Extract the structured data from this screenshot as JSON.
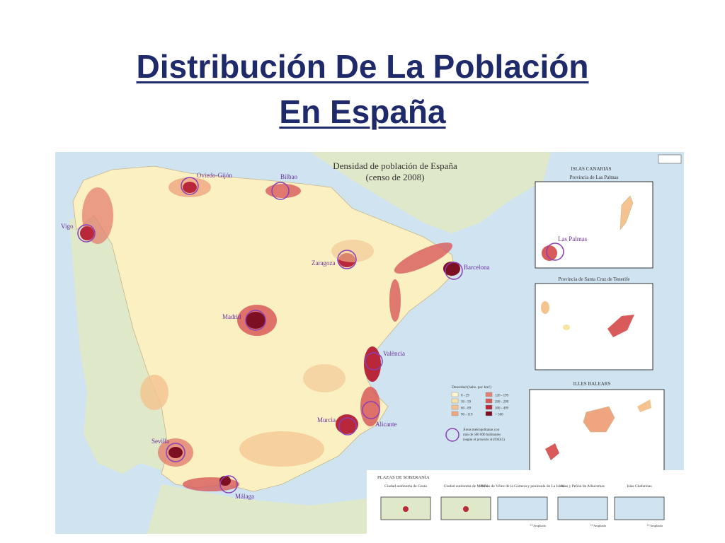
{
  "slide": {
    "title_line1": "Distribución De La Población",
    "title_line2": "En España"
  },
  "map": {
    "title_line1": "Densidad de población de España",
    "title_line2": "(censo de 2008)",
    "cities": [
      "Oviedo-Gijón",
      "Bilbao",
      "Vigo",
      "Zaragoza",
      "Barcelona",
      "Madrid",
      "València",
      "Murcia",
      "Alicante",
      "Sevilla",
      "Málaga"
    ],
    "canarias_header": "ISLAS CANARIAS",
    "las_palmas_title": "Provincia de Las Palmas",
    "las_palmas_city": "Las Palmas",
    "tenerife_title": "Provincia de Santa Cruz de Tenerife",
    "baleares_header": "ILLES BALEARS",
    "legend": {
      "title": "Densidad (habs. por km²)",
      "items": [
        {
          "label": "0 - 29",
          "color": "#fff6cf"
        },
        {
          "label": "30 - 59",
          "color": "#f8e3a6"
        },
        {
          "label": "60 - 89",
          "color": "#f4c38f"
        },
        {
          "label": "90 - 119",
          "color": "#efa57f"
        },
        {
          "label": "120 - 199",
          "color": "#e4806f"
        },
        {
          "label": "200 - 299",
          "color": "#d85a5a"
        },
        {
          "label": "300 - 499",
          "color": "#b8283a"
        },
        {
          "label": "> 500",
          "color": "#7d0f22"
        }
      ],
      "metro_note_line1": "Áreas metropolitanas con",
      "metro_note_line2": "más de 500 000 habitantes",
      "metro_note_line3": "(según el proyecto AUDES5)"
    },
    "plazas_header": "PLAZAS DE SOBERANÍA",
    "plazas": [
      {
        "title": "Ciudad autónoma de Ceuta"
      },
      {
        "title": "Ciudad autónoma de Melilla"
      },
      {
        "title": "Peñón de Vélez de la Gomera y península de La Isleta"
      },
      {
        "title": "Islas y Peñón de Alhucemas"
      },
      {
        "title": "Islas Chafarinas"
      }
    ],
    "ampliado": "Ampliado",
    "colors": {
      "sea": "#cfe3f1",
      "land_other": "#dfe8c8",
      "spain_base": "#fbf0c2",
      "circle": "#8a3fb5"
    }
  }
}
